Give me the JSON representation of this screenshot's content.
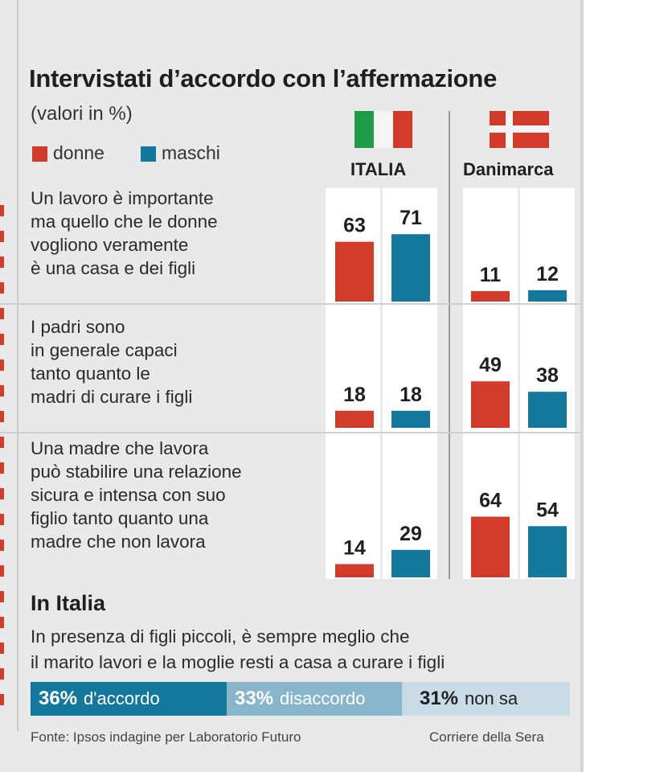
{
  "title": "Intervistati d’accordo con l’affermazione",
  "subtitle": "(valori in %)",
  "colors": {
    "donne": "#d23a2c",
    "maschi": "#14779c",
    "disaccordo": "#88b4cc",
    "non_sa": "#c8dbe6"
  },
  "icons": {
    "italy": "italy-flag-icon",
    "denmark": "denmark-flag-icon"
  },
  "chart_data": {
    "type": "bar",
    "countries": [
      "ITALIA",
      "Danimarca"
    ],
    "legend": [
      {
        "name": "donne",
        "color": "#d23a2c"
      },
      {
        "name": "maschi",
        "color": "#14779c"
      }
    ],
    "legend_position": "top-left",
    "ylim": [
      0,
      100
    ],
    "grid": false,
    "categories": [
      "Un lavoro è importante\nma quello che le donne\nvogliono veramente\nè una casa e dei figli",
      "I padri sono\nin generale capaci\ntanto quanto le\nmadri di curare i figli",
      "Una madre che lavora\npuò stabilire una relazione\nsicura e intensa con suo\nfiglio tanto quanto una\nmadre che non lavora"
    ],
    "series": [
      {
        "country": "ITALIA",
        "name": "donne",
        "values": [
          63,
          18,
          14
        ]
      },
      {
        "country": "ITALIA",
        "name": "maschi",
        "values": [
          71,
          18,
          29
        ]
      },
      {
        "country": "Danimarca",
        "name": "donne",
        "values": [
          11,
          49,
          64
        ]
      },
      {
        "country": "Danimarca",
        "name": "maschi",
        "values": [
          12,
          38,
          54
        ]
      }
    ]
  },
  "italia": {
    "title": "In Italia",
    "question": "In presenza di figli piccoli, è sempre meglio che\nil marito lavori e la moglie resti a casa a curare i figli",
    "breakdown": [
      {
        "value": 36,
        "value_label": "36%",
        "label": "d'accordo"
      },
      {
        "value": 33,
        "value_label": "33%",
        "label": "disaccordo"
      },
      {
        "value": 31,
        "value_label": "31%",
        "label": "non sa"
      }
    ]
  },
  "footer": {
    "source": "Fonte: Ipsos indagine per Laboratorio Futuro",
    "credit": "Corriere della Sera"
  }
}
